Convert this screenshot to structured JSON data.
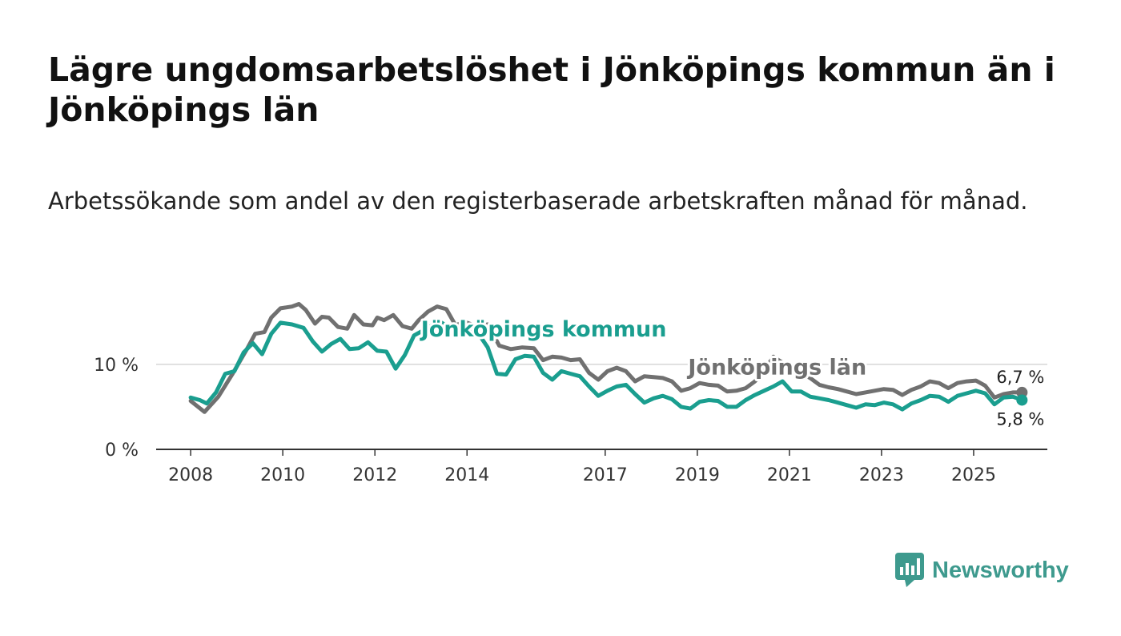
{
  "header": {
    "title": "Lägre ungdomsarbetslöshet i Jönköpings kommun än i Jönköpings län",
    "subtitle": "Arbetssökande som andel av den registerbaserade arbetskraften månad för månad."
  },
  "brand": {
    "name": "Newsworthy",
    "icon": "newsworthy-logo-icon",
    "color": "#3e9a8e"
  },
  "chart_data": {
    "type": "line",
    "x_ticks": [
      "2008",
      "2010",
      "2012",
      "2014",
      "2017",
      "2019",
      "2021",
      "2023",
      "2025"
    ],
    "y_ticks": [
      "0 %",
      "10 %"
    ],
    "ylim": [
      0,
      18
    ],
    "xlim": [
      2007.25,
      2026.6
    ],
    "grid": true,
    "series": [
      {
        "name": "Jönköpings län",
        "color": "#707070",
        "end_label": "6,7 %",
        "points": [
          [
            2008.0,
            5.7
          ],
          [
            2008.3,
            4.4
          ],
          [
            2008.6,
            6.2
          ],
          [
            2008.9,
            8.8
          ],
          [
            2009.2,
            11.6
          ],
          [
            2009.4,
            13.6
          ],
          [
            2009.6,
            13.8
          ],
          [
            2009.75,
            15.5
          ],
          [
            2009.95,
            16.6
          ],
          [
            2010.2,
            16.8
          ],
          [
            2010.35,
            17.1
          ],
          [
            2010.5,
            16.4
          ],
          [
            2010.7,
            14.8
          ],
          [
            2010.85,
            15.6
          ],
          [
            2011.0,
            15.5
          ],
          [
            2011.2,
            14.4
          ],
          [
            2011.4,
            14.2
          ],
          [
            2011.55,
            15.8
          ],
          [
            2011.75,
            14.7
          ],
          [
            2011.95,
            14.6
          ],
          [
            2012.05,
            15.5
          ],
          [
            2012.2,
            15.2
          ],
          [
            2012.4,
            15.8
          ],
          [
            2012.6,
            14.5
          ],
          [
            2012.8,
            14.2
          ],
          [
            2012.95,
            15.2
          ],
          [
            2013.15,
            16.2
          ],
          [
            2013.35,
            16.8
          ],
          [
            2013.55,
            16.5
          ],
          [
            2013.75,
            14.6
          ],
          [
            2013.95,
            15.0
          ],
          [
            2014.2,
            14.5
          ],
          [
            2014.45,
            14.7
          ],
          [
            2014.7,
            12.2
          ],
          [
            2014.95,
            11.8
          ],
          [
            2015.2,
            12.0
          ],
          [
            2015.45,
            11.9
          ],
          [
            2015.65,
            10.5
          ],
          [
            2015.85,
            10.9
          ],
          [
            2016.05,
            10.8
          ],
          [
            2016.25,
            10.5
          ],
          [
            2016.45,
            10.6
          ],
          [
            2016.65,
            9.0
          ],
          [
            2016.85,
            8.2
          ],
          [
            2017.05,
            9.2
          ],
          [
            2017.25,
            9.6
          ],
          [
            2017.45,
            9.2
          ],
          [
            2017.65,
            8.0
          ],
          [
            2017.85,
            8.6
          ],
          [
            2018.05,
            8.5
          ],
          [
            2018.25,
            8.4
          ],
          [
            2018.45,
            8.0
          ],
          [
            2018.65,
            6.9
          ],
          [
            2018.85,
            7.2
          ],
          [
            2019.05,
            7.8
          ],
          [
            2019.25,
            7.6
          ],
          [
            2019.45,
            7.5
          ],
          [
            2019.65,
            6.8
          ],
          [
            2019.85,
            6.9
          ],
          [
            2020.05,
            7.2
          ],
          [
            2020.25,
            8.0
          ],
          [
            2020.45,
            9.2
          ],
          [
            2020.65,
            10.9
          ],
          [
            2020.85,
            10.2
          ],
          [
            2021.05,
            9.7
          ],
          [
            2021.25,
            9.0
          ],
          [
            2021.45,
            8.4
          ],
          [
            2021.65,
            7.6
          ],
          [
            2021.85,
            7.3
          ],
          [
            2022.05,
            7.1
          ],
          [
            2022.25,
            6.8
          ],
          [
            2022.45,
            6.5
          ],
          [
            2022.65,
            6.7
          ],
          [
            2022.85,
            6.9
          ],
          [
            2023.05,
            7.1
          ],
          [
            2023.25,
            7.0
          ],
          [
            2023.45,
            6.4
          ],
          [
            2023.65,
            7.0
          ],
          [
            2023.85,
            7.4
          ],
          [
            2024.05,
            8.0
          ],
          [
            2024.25,
            7.8
          ],
          [
            2024.45,
            7.2
          ],
          [
            2024.65,
            7.8
          ],
          [
            2024.85,
            8.0
          ],
          [
            2025.05,
            8.1
          ],
          [
            2025.25,
            7.5
          ],
          [
            2025.45,
            6.1
          ],
          [
            2025.65,
            6.5
          ],
          [
            2025.85,
            6.7
          ],
          [
            2026.05,
            6.7
          ]
        ]
      },
      {
        "name": "Jönköpings kommun",
        "color": "#1a9e8f",
        "end_label": "5,8 %",
        "points": [
          [
            2008.0,
            6.1
          ],
          [
            2008.2,
            5.8
          ],
          [
            2008.35,
            5.4
          ],
          [
            2008.55,
            6.7
          ],
          [
            2008.75,
            8.9
          ],
          [
            2008.95,
            9.2
          ],
          [
            2009.15,
            11.4
          ],
          [
            2009.35,
            12.5
          ],
          [
            2009.55,
            11.2
          ],
          [
            2009.75,
            13.6
          ],
          [
            2009.95,
            14.9
          ],
          [
            2010.2,
            14.7
          ],
          [
            2010.45,
            14.3
          ],
          [
            2010.65,
            12.7
          ],
          [
            2010.85,
            11.5
          ],
          [
            2011.05,
            12.4
          ],
          [
            2011.25,
            13.0
          ],
          [
            2011.45,
            11.8
          ],
          [
            2011.65,
            11.9
          ],
          [
            2011.85,
            12.6
          ],
          [
            2012.05,
            11.6
          ],
          [
            2012.25,
            11.5
          ],
          [
            2012.45,
            9.5
          ],
          [
            2012.65,
            11.1
          ],
          [
            2012.85,
            13.4
          ],
          [
            2013.05,
            14.0
          ],
          [
            2013.25,
            14.6
          ],
          [
            2013.45,
            14.9
          ],
          [
            2013.65,
            14.2
          ],
          [
            2013.85,
            13.8
          ],
          [
            2014.05,
            13.9
          ],
          [
            2014.25,
            13.6
          ],
          [
            2014.45,
            12.0
          ],
          [
            2014.65,
            8.9
          ],
          [
            2014.85,
            8.8
          ],
          [
            2015.05,
            10.6
          ],
          [
            2015.25,
            11.0
          ],
          [
            2015.45,
            10.9
          ],
          [
            2015.65,
            9.0
          ],
          [
            2015.85,
            8.2
          ],
          [
            2016.05,
            9.2
          ],
          [
            2016.25,
            8.9
          ],
          [
            2016.45,
            8.6
          ],
          [
            2016.65,
            7.4
          ],
          [
            2016.85,
            6.3
          ],
          [
            2017.05,
            6.9
          ],
          [
            2017.25,
            7.4
          ],
          [
            2017.45,
            7.6
          ],
          [
            2017.65,
            6.5
          ],
          [
            2017.85,
            5.5
          ],
          [
            2018.05,
            6.0
          ],
          [
            2018.25,
            6.3
          ],
          [
            2018.45,
            5.9
          ],
          [
            2018.65,
            5.0
          ],
          [
            2018.85,
            4.8
          ],
          [
            2019.05,
            5.6
          ],
          [
            2019.25,
            5.8
          ],
          [
            2019.45,
            5.7
          ],
          [
            2019.65,
            5.0
          ],
          [
            2019.85,
            5.0
          ],
          [
            2020.05,
            5.8
          ],
          [
            2020.25,
            6.4
          ],
          [
            2020.45,
            6.9
          ],
          [
            2020.65,
            7.4
          ],
          [
            2020.85,
            8.0
          ],
          [
            2021.05,
            6.8
          ],
          [
            2021.25,
            6.8
          ],
          [
            2021.45,
            6.2
          ],
          [
            2021.65,
            6.0
          ],
          [
            2021.85,
            5.8
          ],
          [
            2022.05,
            5.5
          ],
          [
            2022.25,
            5.2
          ],
          [
            2022.45,
            4.9
          ],
          [
            2022.65,
            5.3
          ],
          [
            2022.85,
            5.2
          ],
          [
            2023.05,
            5.5
          ],
          [
            2023.25,
            5.3
          ],
          [
            2023.45,
            4.7
          ],
          [
            2023.65,
            5.4
          ],
          [
            2023.85,
            5.8
          ],
          [
            2024.05,
            6.3
          ],
          [
            2024.25,
            6.2
          ],
          [
            2024.45,
            5.6
          ],
          [
            2024.65,
            6.3
          ],
          [
            2024.85,
            6.6
          ],
          [
            2025.05,
            6.9
          ],
          [
            2025.25,
            6.6
          ],
          [
            2025.45,
            5.3
          ],
          [
            2025.65,
            6.1
          ],
          [
            2025.85,
            6.2
          ],
          [
            2026.05,
            5.8
          ]
        ]
      }
    ],
    "annotations": [
      {
        "text": "Jönköpings kommun",
        "series": "Jönköpings kommun",
        "x": 2013.0,
        "y": 13.3
      },
      {
        "text": "Jönköpings län",
        "series": "Jönköpings län",
        "x": 2018.8,
        "y": 8.8
      }
    ]
  }
}
